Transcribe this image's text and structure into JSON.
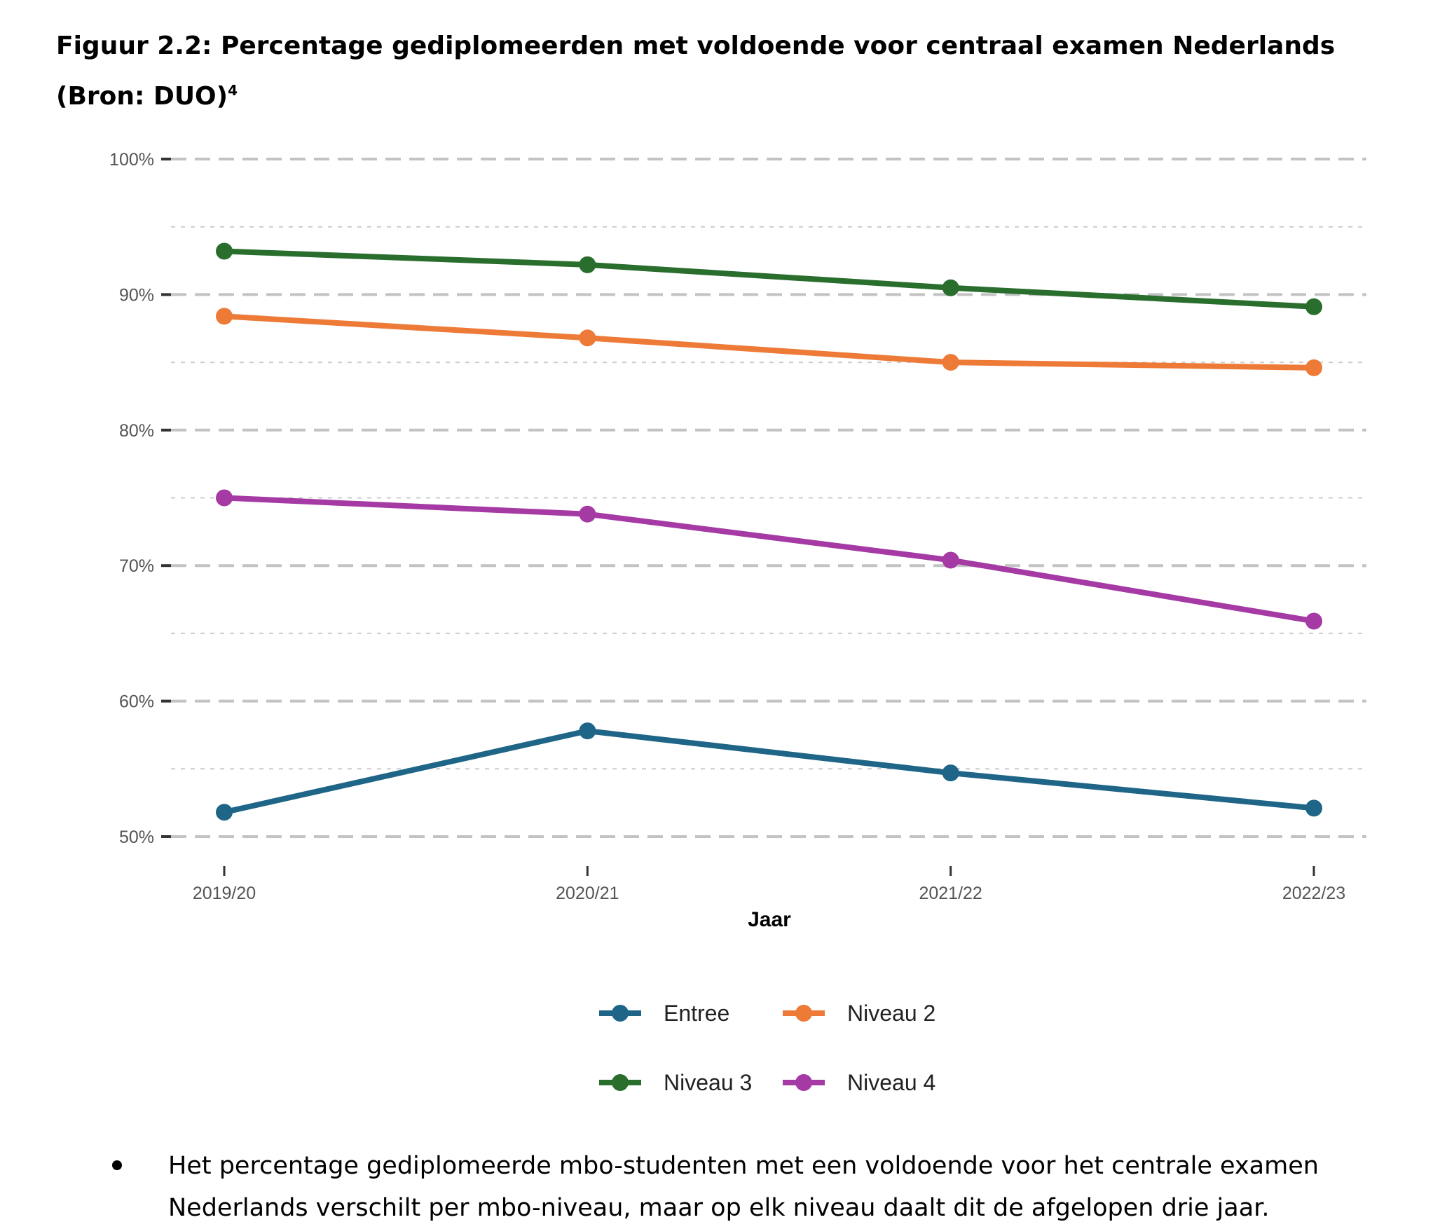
{
  "figure": {
    "title": "Figuur 2.2: Percentage gediplomeerden met voldoende voor centraal examen Nederlands (Bron: DUO)",
    "footnote_ref": "4"
  },
  "chart_data": {
    "type": "line",
    "x": [
      "2019/20",
      "2020/21",
      "2021/22",
      "2022/23"
    ],
    "xlabel": "Jaar",
    "ylabel": "",
    "ylim": [
      50,
      100
    ],
    "yticks": [
      50,
      60,
      70,
      80,
      90,
      100
    ],
    "ytick_labels": [
      "50%",
      "60%",
      "70%",
      "80%",
      "90%",
      "100%"
    ],
    "grid": true,
    "legend_position": "bottom",
    "series": [
      {
        "name": "Entree",
        "color": "#1e6587",
        "values": [
          51.8,
          57.8,
          54.7,
          52.1
        ]
      },
      {
        "name": "Niveau 2",
        "color": "#ee7a38",
        "values": [
          88.4,
          86.8,
          85.0,
          84.6
        ]
      },
      {
        "name": "Niveau 3",
        "color": "#2a6e2e",
        "values": [
          93.2,
          92.2,
          90.5,
          89.1
        ]
      },
      {
        "name": "Niveau 4",
        "color": "#a53aa4",
        "values": [
          75.0,
          73.8,
          70.4,
          65.9
        ]
      }
    ]
  },
  "bullet": {
    "text": "Het percentage gediplomeerde mbo-studenten met een voldoende voor het centrale examen Nederlands verschilt per mbo-niveau, maar op elk niveau daalt dit de afgelopen drie jaar."
  }
}
